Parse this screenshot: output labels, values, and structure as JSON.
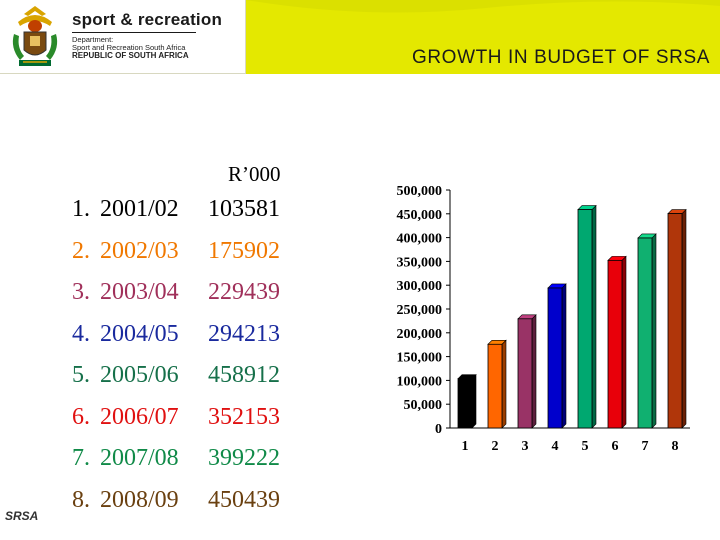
{
  "header": {
    "dept_name": "sport & recreation",
    "dept_line1": "Department:",
    "dept_line2": "Sport and Recreation South Africa",
    "dept_line3": "REPUBLIC OF SOUTH AFRICA",
    "title": "GROWTH IN BUDGET OF SRSA",
    "crest_icon": "coat-of-arms-icon"
  },
  "unit_label": "R’000",
  "rows": [
    {
      "num": "1.",
      "year": "2001/02",
      "value": "103581",
      "color": "#000000"
    },
    {
      "num": "2.",
      "year": "2002/03",
      "value": "175902",
      "color": "#f07800"
    },
    {
      "num": "3.",
      "year": "2003/04",
      "value": "229439",
      "color": "#a0305a"
    },
    {
      "num": "4.",
      "year": "2004/05",
      "value": "294213",
      "color": "#1a2a9e"
    },
    {
      "num": "5.",
      "year": "2005/06",
      "value": "458912",
      "color": "#16704a"
    },
    {
      "num": "6.",
      "year": "2006/07",
      "value": "352153",
      "color": "#e01010"
    },
    {
      "num": "7.",
      "year": "2007/08",
      "value": "399222",
      "color": "#108a48"
    },
    {
      "num": "8.",
      "year": "2008/09",
      "value": "450439",
      "color": "#6a4010"
    }
  ],
  "footer": "SRSA",
  "colors": {
    "band": "#e4e800",
    "text": "#1a1a1a"
  },
  "chart_data": {
    "type": "bar",
    "categories": [
      "1",
      "2",
      "3",
      "4",
      "5",
      "6",
      "7",
      "8"
    ],
    "values": [
      103581,
      175902,
      229439,
      294213,
      458912,
      352153,
      399222,
      450439
    ],
    "colors": [
      "#000000",
      "#ff6600",
      "#993366",
      "#0000cc",
      "#00a870",
      "#e8000a",
      "#10b070",
      "#b0360a"
    ],
    "ylim": [
      0,
      500000
    ],
    "yticks": [
      0,
      50000,
      100000,
      150000,
      200000,
      250000,
      300000,
      350000,
      400000,
      450000,
      500000
    ],
    "ytick_labels": [
      "0",
      "50,000",
      "100,000",
      "150,000",
      "200,000",
      "250,000",
      "300,000",
      "350,000",
      "400,000",
      "450,000",
      "500,000"
    ],
    "grid": false,
    "style": "3d-columns"
  }
}
